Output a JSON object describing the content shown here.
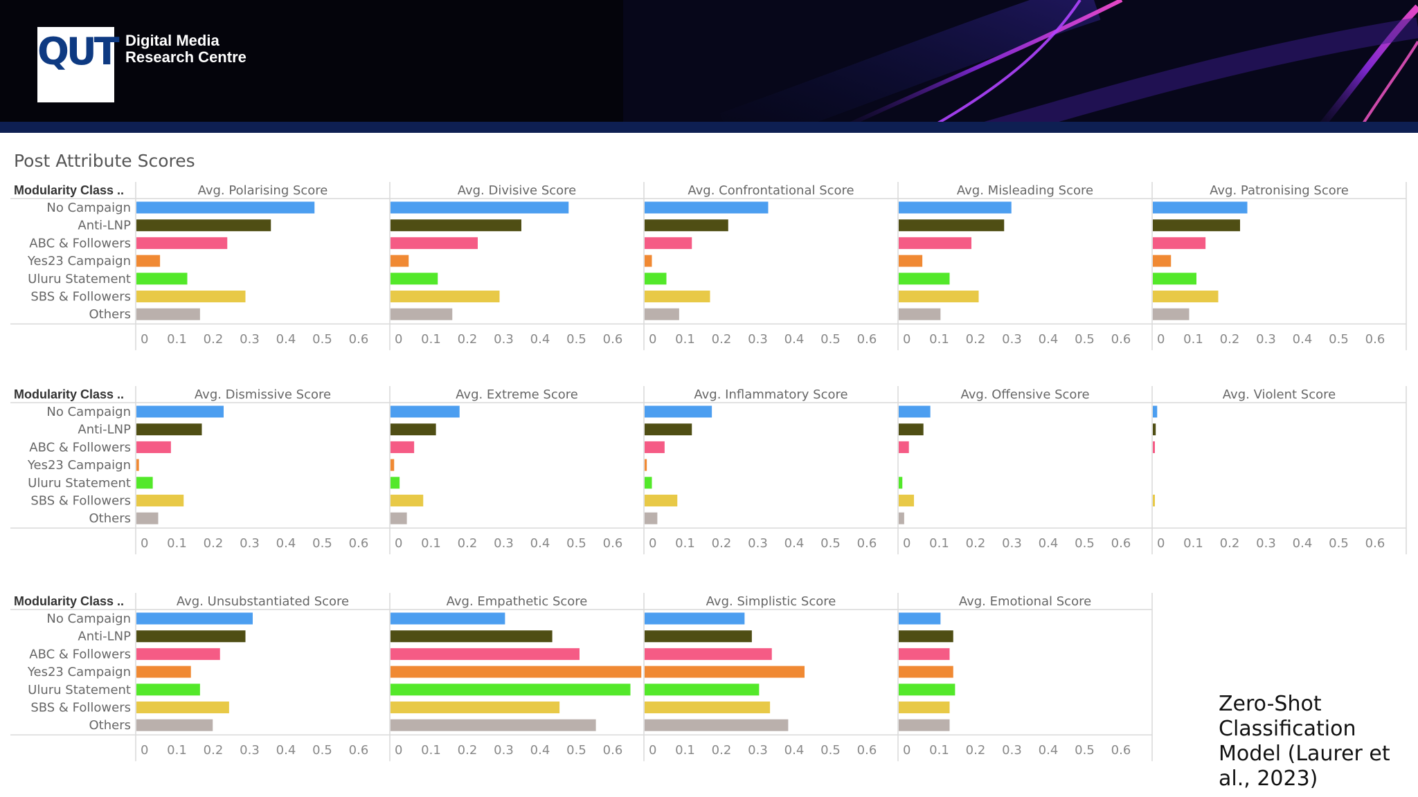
{
  "brand": {
    "logo_text": "QUT",
    "org_line1": "Digital Media",
    "org_line2": "Research Centre"
  },
  "page_title": "Post Attribute Scores",
  "citation": [
    "Zero-Shot",
    "Classification",
    "Model (Laurer et",
    "al., 2023)"
  ],
  "colors": {
    "No Campaign": "#4c9ef0",
    "Anti-LNP": "#4f4e14",
    "ABC & Followers": "#f55b85",
    "Yes23 Campaign": "#f08933",
    "Uluru Statement": "#53e82a",
    "SBS & Followers": "#e8c947",
    "Others": "#bab0ac"
  },
  "chart_data": {
    "type": "bar",
    "orientation": "horizontal",
    "row_header": "Modularity Class ..",
    "categories": [
      "No Campaign",
      "Anti-LNP",
      "ABC & Followers",
      "Yes23 Campaign",
      "Uluru Statement",
      "SBS & Followers",
      "Others"
    ],
    "xlim": [
      0,
      0.7
    ],
    "ticks": [
      "0",
      "0.1",
      "0.2",
      "0.3",
      "0.4",
      "0.5",
      "0.6"
    ],
    "tick_values": [
      0,
      0.1,
      0.2,
      0.3,
      0.4,
      0.5,
      0.6
    ],
    "grid_rows": [
      [
        {
          "title": "Avg. Polarising Score",
          "values": [
            0.49,
            0.37,
            0.25,
            0.065,
            0.14,
            0.3,
            0.175
          ]
        },
        {
          "title": "Avg. Divisive Score",
          "values": [
            0.49,
            0.36,
            0.24,
            0.05,
            0.13,
            0.3,
            0.17
          ]
        },
        {
          "title": "Avg. Confrontational Score",
          "values": [
            0.34,
            0.23,
            0.13,
            0.02,
            0.06,
            0.18,
            0.095
          ]
        },
        {
          "title": "Avg. Misleading Score",
          "values": [
            0.31,
            0.29,
            0.2,
            0.065,
            0.14,
            0.22,
            0.115
          ]
        },
        {
          "title": "Avg. Patronising Score",
          "values": [
            0.26,
            0.24,
            0.145,
            0.05,
            0.12,
            0.18,
            0.1
          ]
        }
      ],
      [
        {
          "title": "Avg. Dismissive Score",
          "values": [
            0.24,
            0.18,
            0.095,
            0.007,
            0.045,
            0.13,
            0.06
          ]
        },
        {
          "title": "Avg. Extreme Score",
          "values": [
            0.19,
            0.125,
            0.065,
            0.01,
            0.025,
            0.09,
            0.045
          ]
        },
        {
          "title": "Avg. Inflammatory Score",
          "values": [
            0.185,
            0.13,
            0.055,
            0.006,
            0.02,
            0.09,
            0.035
          ]
        },
        {
          "title": "Avg. Offensive Score",
          "values": [
            0.087,
            0.068,
            0.028,
            0.0,
            0.01,
            0.042,
            0.015
          ]
        },
        {
          "title": "Avg. Violent Score",
          "values": [
            0.012,
            0.008,
            0.004,
            0.0,
            0.0,
            0.005,
            0.0
          ]
        }
      ],
      [
        {
          "title": "Avg. Unsubstantiated Score",
          "values": [
            0.32,
            0.3,
            0.23,
            0.15,
            0.175,
            0.255,
            0.21
          ]
        },
        {
          "title": "Avg. Empathetic Score",
          "values": [
            0.315,
            0.445,
            0.52,
            0.69,
            0.66,
            0.465,
            0.565
          ]
        },
        {
          "title": "Avg. Simplistic Score",
          "values": [
            0.275,
            0.295,
            0.35,
            0.44,
            0.315,
            0.345,
            0.395
          ]
        },
        {
          "title": "Avg. Emotional Score",
          "values": [
            0.115,
            0.15,
            0.14,
            0.15,
            0.155,
            0.14,
            0.14
          ]
        }
      ]
    ]
  }
}
